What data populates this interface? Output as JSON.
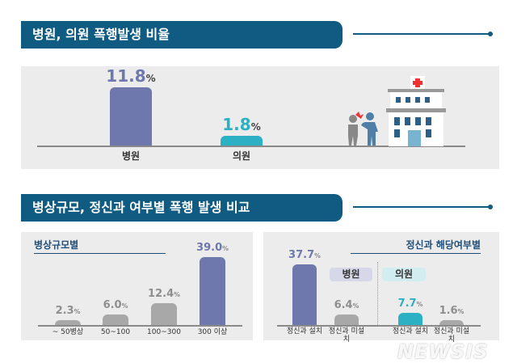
{
  "section1": {
    "title": "병원, 의원 폭행발생 비율"
  },
  "section2": {
    "title": "병상규모, 정신과 여부별 폭행 발생 비교"
  },
  "colors": {
    "header": "#0f5b82",
    "hospital": "#6e78ac",
    "clinic": "#2bb0c4",
    "gray": "#a8a8a8"
  },
  "watermark": "NEWSIS",
  "chart_data": [
    {
      "type": "bar",
      "title": "",
      "categories": [
        "병원",
        "의원"
      ],
      "values": [
        11.8,
        1.8
      ],
      "unit": "%",
      "colors": [
        "#6e78ac",
        "#2bb0c4"
      ],
      "icon": "hospital-assault-illustration"
    },
    {
      "type": "bar",
      "title": "병상규모별",
      "categories": [
        "~ 50병상",
        "50~100",
        "100~300",
        "300 이상"
      ],
      "values": [
        2.3,
        6.0,
        12.4,
        39.0
      ],
      "unit": "%",
      "colors": [
        "#a8a8a8",
        "#a8a8a8",
        "#a8a8a8",
        "#6e78ac"
      ]
    },
    {
      "type": "bar",
      "title": "정신과 해당여부별",
      "groups": [
        "병원",
        "의원"
      ],
      "categories": [
        "정신과 설치",
        "정신과 미설치",
        "정신과 설치",
        "정신과 미설치"
      ],
      "values": [
        37.7,
        6.4,
        7.7,
        1.6
      ],
      "unit": "%",
      "colors": [
        "#6e78ac",
        "#a8a8a8",
        "#2bb0c4",
        "#a8a8a8"
      ]
    }
  ]
}
